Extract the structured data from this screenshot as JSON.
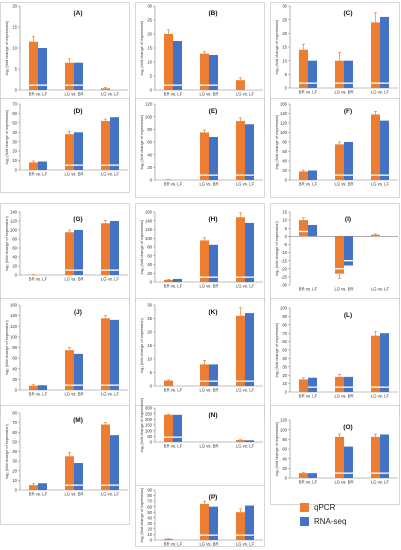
{
  "colors": {
    "qpcr": "#ED7D31",
    "rnaseq": "#4472C4"
  },
  "legend": [
    {
      "label": "qPCR",
      "color": "#ED7D31"
    },
    {
      "label": "RNA-seq",
      "color": "#4472C4"
    }
  ],
  "y_axis_label": "log₂ (fold change of expression)",
  "chart_data": [
    {
      "type": "bar",
      "title": "(A)",
      "categories": [
        "BR vs. LF",
        "LG vs. BR",
        "LG vs. LF"
      ],
      "series": [
        {
          "name": "qPCR",
          "values": [
            11.5,
            6.5,
            0.4
          ]
        },
        {
          "name": "RNA-seq",
          "values": [
            10,
            6.5,
            0
          ]
        }
      ],
      "error": [
        1.2,
        0.9,
        0.2
      ],
      "ylim": [
        0,
        20
      ],
      "yticks": [
        0,
        5,
        10,
        15,
        20
      ]
    },
    {
      "type": "bar",
      "title": "(B)",
      "categories": [
        "BR vs. LF",
        "LG vs. BR",
        "LG vs. LF"
      ],
      "series": [
        {
          "name": "qPCR",
          "values": [
            20,
            13,
            3.5
          ]
        },
        {
          "name": "RNA-seq",
          "values": [
            17.5,
            12.5,
            0
          ]
        }
      ],
      "error": [
        1.5,
        0.8,
        0.8
      ],
      "ylim": [
        0,
        30
      ],
      "yticks": [
        0,
        5,
        10,
        15,
        20,
        25,
        30
      ]
    },
    {
      "type": "bar",
      "title": "(C)",
      "categories": [
        "BR vs. LF",
        "LG vs. BR",
        "LG vs. LF"
      ],
      "series": [
        {
          "name": "qPCR",
          "values": [
            14,
            10,
            24
          ]
        },
        {
          "name": "RNA-seq",
          "values": [
            10,
            10,
            26
          ]
        }
      ],
      "error": [
        2,
        3,
        3.5
      ],
      "ylim": [
        0,
        30
      ],
      "yticks": [
        0,
        5,
        10,
        15,
        20,
        25,
        30
      ]
    },
    {
      "type": "bar",
      "title": "(D)",
      "categories": [
        "BR vs. LF",
        "LG vs. BR",
        "LG vs. LF"
      ],
      "series": [
        {
          "name": "qPCR",
          "values": [
            8,
            38,
            52
          ]
        },
        {
          "name": "RNA-seq",
          "values": [
            9,
            40,
            56
          ]
        }
      ],
      "error": [
        1.5,
        3,
        2
      ],
      "ylim": [
        0,
        70
      ],
      "yticks": [
        0,
        10,
        20,
        30,
        40,
        50,
        60,
        70
      ]
    },
    {
      "type": "bar",
      "title": "(E)",
      "categories": [
        "BR vs. LF",
        "LG vs. BR",
        "LG vs. LF"
      ],
      "series": [
        {
          "name": "qPCR",
          "values": [
            0.5,
            75,
            93
          ]
        },
        {
          "name": "RNA-seq",
          "values": [
            0,
            68,
            88
          ]
        }
      ],
      "error": [
        0.3,
        4,
        5
      ],
      "ylim": [
        0,
        120
      ],
      "yticks": [
        0,
        20,
        40,
        60,
        80,
        100,
        120
      ]
    },
    {
      "type": "bar",
      "title": "(F)",
      "categories": [
        "BR vs. LF",
        "LG vs. BR",
        "LG vs. LF"
      ],
      "series": [
        {
          "name": "qPCR",
          "values": [
            18,
            75,
            138
          ]
        },
        {
          "name": "RNA-seq",
          "values": [
            20,
            80,
            125
          ]
        }
      ],
      "error": [
        3,
        5,
        6
      ],
      "ylim": [
        0,
        160
      ],
      "yticks": [
        0,
        20,
        40,
        60,
        80,
        100,
        120,
        140,
        160
      ]
    },
    {
      "type": "bar",
      "title": "(G)",
      "categories": [
        "BR vs. LF",
        "LG vs. BR",
        "LG vs. LF"
      ],
      "series": [
        {
          "name": "qPCR",
          "values": [
            0.5,
            95,
            115
          ]
        },
        {
          "name": "RNA-seq",
          "values": [
            0,
            100,
            120
          ]
        }
      ],
      "error": [
        0.3,
        5,
        6
      ],
      "ylim": [
        0,
        140
      ],
      "yticks": [
        0,
        20,
        40,
        60,
        80,
        100,
        120,
        140
      ]
    },
    {
      "type": "bar",
      "title": "(H)",
      "categories": [
        "BR vs. LF",
        "LG vs. BR",
        "LG vs. LF"
      ],
      "series": [
        {
          "name": "qPCR",
          "values": [
            5,
            95,
            148
          ]
        },
        {
          "name": "RNA-seq",
          "values": [
            7,
            85,
            135
          ]
        }
      ],
      "error": [
        1,
        6,
        10
      ],
      "ylim": [
        0,
        160
      ],
      "yticks": [
        0,
        20,
        40,
        60,
        80,
        100,
        120,
        140,
        160
      ]
    },
    {
      "type": "bar",
      "title": "(I)",
      "categories": [
        "BR vs. LF",
        "LG vs. BR",
        "LG vs. LF"
      ],
      "series": [
        {
          "name": "qPCR",
          "values": [
            10,
            -23,
            1
          ]
        },
        {
          "name": "RNA-seq",
          "values": [
            7,
            -18,
            0
          ]
        }
      ],
      "error": [
        1.5,
        3,
        0.5
      ],
      "ylim": [
        -30,
        15
      ],
      "yticks": [
        -30,
        -25,
        -20,
        -15,
        -10,
        -5,
        0,
        5,
        10,
        15
      ]
    },
    {
      "type": "bar",
      "title": "(J)",
      "categories": [
        "BR vs. LF",
        "LG vs. BR",
        "LG vs. LF"
      ],
      "series": [
        {
          "name": "qPCR",
          "values": [
            8,
            75,
            135
          ]
        },
        {
          "name": "RNA-seq",
          "values": [
            9,
            68,
            132
          ]
        }
      ],
      "error": [
        2,
        5,
        5
      ],
      "ylim": [
        0,
        160
      ],
      "yticks": [
        0,
        20,
        40,
        60,
        80,
        100,
        120,
        140,
        160
      ]
    },
    {
      "type": "bar",
      "title": "(K)",
      "categories": [
        "BR vs. LF",
        "LG vs. BR",
        "LG vs. LF"
      ],
      "series": [
        {
          "name": "qPCR",
          "values": [
            2,
            8,
            26
          ]
        },
        {
          "name": "RNA-seq",
          "values": [
            0,
            8,
            27
          ]
        }
      ],
      "error": [
        0.3,
        1.5,
        3
      ],
      "ylim": [
        0,
        30
      ],
      "yticks": [
        0,
        5,
        10,
        15,
        20,
        25,
        30
      ]
    },
    {
      "type": "bar",
      "title": "(L)",
      "categories": [
        "BR vs. LF",
        "LG vs. BR",
        "LG vs. LF"
      ],
      "series": [
        {
          "name": "qPCR",
          "values": [
            15,
            18,
            67
          ]
        },
        {
          "name": "RNA-seq",
          "values": [
            17,
            18,
            70
          ]
        }
      ],
      "error": [
        2,
        3,
        5
      ],
      "ylim": [
        0,
        100
      ],
      "yticks": [
        0,
        10,
        20,
        30,
        40,
        50,
        60,
        70,
        80,
        90,
        100
      ]
    },
    {
      "type": "bar",
      "title": "(M)",
      "categories": [
        "BR vs. LF",
        "LG vs. BR",
        "LG vs. LF"
      ],
      "series": [
        {
          "name": "qPCR",
          "values": [
            5,
            35,
            68
          ]
        },
        {
          "name": "RNA-seq",
          "values": [
            7,
            28,
            57
          ]
        }
      ],
      "error": [
        1.5,
        4,
        2
      ],
      "ylim": [
        0,
        80
      ],
      "yticks": [
        0,
        10,
        20,
        30,
        40,
        50,
        60,
        70,
        80
      ]
    },
    {
      "type": "bar",
      "title": "(N)",
      "categories": [
        "BR vs. LF",
        "LG vs. BR",
        "LG vs. LF"
      ],
      "series": [
        {
          "name": "qPCR",
          "values": [
            240,
            0,
            17
          ]
        },
        {
          "name": "RNA-seq",
          "values": [
            240,
            0,
            15
          ]
        }
      ],
      "error": [
        6,
        0,
        3
      ],
      "ylim": [
        0,
        300
      ],
      "yticks": [
        0,
        50,
        100,
        150,
        200,
        250,
        300
      ]
    },
    {
      "type": "bar",
      "title": "(O)",
      "categories": [
        "BR vs. LF",
        "LG vs. BR",
        "LG vs. LF"
      ],
      "series": [
        {
          "name": "qPCR",
          "values": [
            10,
            85,
            85
          ]
        },
        {
          "name": "RNA-seq",
          "values": [
            10,
            65,
            90
          ]
        }
      ],
      "error": [
        2,
        6,
        6
      ],
      "ylim": [
        0,
        120
      ],
      "yticks": [
        0,
        20,
        40,
        60,
        80,
        100,
        120
      ]
    },
    {
      "type": "bar",
      "title": "(P)",
      "categories": [
        "BR vs. LF",
        "LG vs. BR",
        "LG vs. LF"
      ],
      "series": [
        {
          "name": "qPCR",
          "values": [
            2,
            65,
            50
          ]
        },
        {
          "name": "RNA-seq",
          "values": [
            0,
            60,
            62
          ]
        }
      ],
      "error": [
        0.4,
        5,
        6
      ],
      "ylim": [
        0,
        90
      ],
      "yticks": [
        0,
        10,
        20,
        30,
        40,
        50,
        60,
        70,
        80,
        90
      ]
    }
  ]
}
